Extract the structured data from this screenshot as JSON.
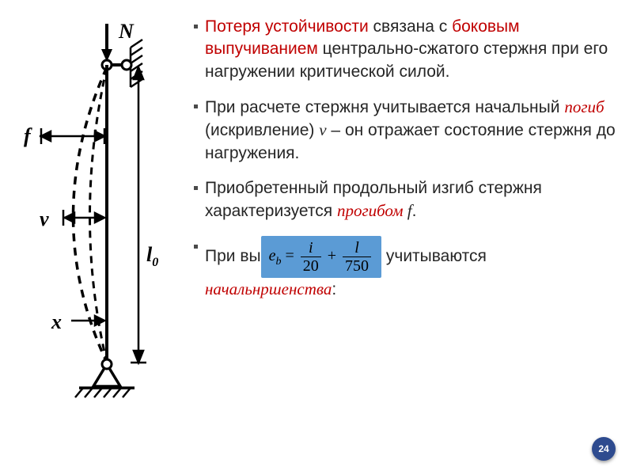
{
  "bullets": [
    {
      "parts": [
        {
          "t": "Потеря устойчивости ",
          "cls": "red"
        },
        {
          "t": "связана с "
        },
        {
          "t": "боковым выпучиванием ",
          "cls": "red"
        },
        {
          "t": "центрально-сжатого стержня при его нагружении критической силой."
        }
      ]
    },
    {
      "parts": [
        {
          "t": "При расчете стержня учитывается начальный "
        },
        {
          "t": "погиб ",
          "cls": "red italic"
        },
        {
          "t": "(искривление) "
        },
        {
          "t": "ν",
          "cls": "italic"
        },
        {
          "t": " – он отражает состояние стержня до нагружения."
        }
      ]
    },
    {
      "parts": [
        {
          "t": "Приобретенный продольный изгиб стержня характеризуется "
        },
        {
          "t": "прогибом ",
          "cls": "red italic"
        },
        {
          "t": "f",
          "cls": "italic"
        },
        {
          "t": "."
        }
      ]
    },
    {
      "parts": [
        {
          "t": "При вы"
        },
        {
          "formula": true
        },
        {
          "t": " учитываются "
        },
        {
          "t": "начальн",
          "cls": "red italic"
        },
        {
          "t": "ршенства",
          "cls": "red italic"
        },
        {
          "t": ":"
        }
      ]
    }
  ],
  "formula": {
    "lhs_base": "e",
    "lhs_sub": "b",
    "eq": "=",
    "frac1_num": "i",
    "frac1_den": "20",
    "plus": "+",
    "frac2_num": "l",
    "frac2_den": "750"
  },
  "diagram": {
    "N": "N",
    "f": "f",
    "v": "v",
    "x": "x",
    "l0": "l",
    "l0_sub": "0"
  },
  "page_number": "24",
  "colors": {
    "red": "#c00000",
    "text": "#262626",
    "formula_bg": "#5b9bd5",
    "badge": "#2e4b8f"
  }
}
